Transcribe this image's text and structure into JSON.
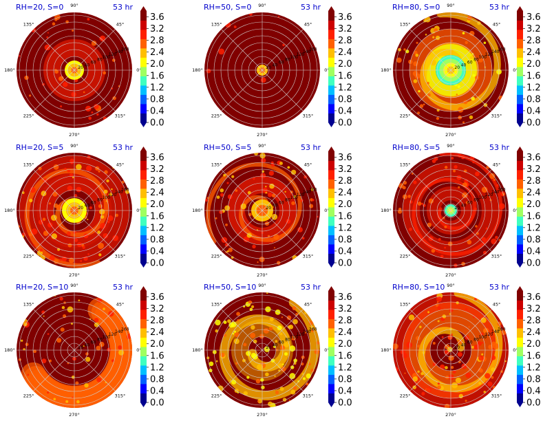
{
  "figure": {
    "colors": {
      "background": "#ffffff",
      "title": "#0000cc",
      "grid": "#cfcfcf",
      "outer": "#800000"
    },
    "colormap": [
      "#00008f",
      "#0000ff",
      "#0060ff",
      "#00bfff",
      "#40ffbf",
      "#9fff60",
      "#ffff00",
      "#ffbf00",
      "#ff6000",
      "#ff2000",
      "#cc0000",
      "#800000"
    ]
  },
  "chart_data": [
    {
      "type": "heatmap",
      "subplot": "polar",
      "title": "RH=20, S=0",
      "time_label": "53 hr",
      "angle_ticks": [
        "90°",
        "45°",
        "0°",
        "315°",
        "270°",
        "225°",
        "180°",
        "135°"
      ],
      "radial_ticks": [
        "20",
        "40",
        "60",
        "80",
        "100",
        "120",
        "140",
        "160"
      ],
      "colorbar_ticks": [
        "3.6",
        "3.2",
        "2.8",
        "2.4",
        "2.0",
        "1.6",
        "1.2",
        "0.8",
        "0.4",
        "0.0"
      ],
      "color_range": [
        0.0,
        3.8
      ],
      "field_description": "mostly saturated dark red with a small orange core"
    },
    {
      "type": "heatmap",
      "subplot": "polar",
      "title": "RH=50, S=0",
      "time_label": "53 hr",
      "angle_ticks": [
        "90°",
        "45°",
        "0°",
        "315°",
        "270°",
        "225°",
        "180°",
        "135°"
      ],
      "radial_ticks": [
        "20",
        "40",
        "60",
        "80",
        "100",
        "120",
        "140",
        "160"
      ],
      "colorbar_ticks": [
        "3.6",
        "3.2",
        "2.8",
        "2.4",
        "2.0",
        "1.6",
        "1.2",
        "0.8",
        "0.4",
        "0.0"
      ],
      "color_range": [
        0.0,
        3.8
      ],
      "field_description": "uniform dark red with tiny central orange spot"
    },
    {
      "type": "heatmap",
      "subplot": "polar",
      "title": "RH=80, S=0",
      "time_label": "53 hr",
      "angle_ticks": [
        "90°",
        "45°",
        "0°",
        "315°",
        "270°",
        "225°",
        "180°",
        "135°"
      ],
      "radial_ticks": [
        "20",
        "40",
        "60",
        "80",
        "100",
        "120",
        "140",
        "160"
      ],
      "colorbar_ticks": [
        "3.6",
        "3.2",
        "2.8",
        "2.4",
        "2.0",
        "1.6",
        "1.2",
        "0.8",
        "0.4",
        "0.0"
      ],
      "color_range": [
        0.0,
        3.8
      ],
      "field_description": "green-cyan eye surrounded by yellow and orange spiral"
    },
    {
      "type": "heatmap",
      "subplot": "polar",
      "title": "RH=20, S=5",
      "time_label": "53 hr",
      "angle_ticks": [
        "90°",
        "45°",
        "0°",
        "315°",
        "270°",
        "225°",
        "180°",
        "135°"
      ],
      "radial_ticks": [
        "20",
        "40",
        "60",
        "80",
        "100",
        "120",
        "140",
        "160"
      ],
      "colorbar_ticks": [
        "3.6",
        "3.2",
        "2.8",
        "2.4",
        "2.0",
        "1.6",
        "1.2",
        "0.8",
        "0.4",
        "0.0"
      ],
      "color_range": [
        0.0,
        3.8
      ],
      "field_description": "orange-yellow core with spiral bands"
    },
    {
      "type": "heatmap",
      "subplot": "polar",
      "title": "RH=50, S=5",
      "time_label": "53 hr",
      "angle_ticks": [
        "90°",
        "45°",
        "0°",
        "315°",
        "270°",
        "225°",
        "180°",
        "135°"
      ],
      "radial_ticks": [
        "20",
        "40",
        "60",
        "80",
        "100",
        "120",
        "140",
        "160"
      ],
      "colorbar_ticks": [
        "3.6",
        "3.2",
        "2.8",
        "2.4",
        "2.0",
        "1.6",
        "1.2",
        "0.8",
        "0.4",
        "0.0"
      ],
      "color_range": [
        0.0,
        3.8
      ],
      "field_description": "orange core with scattered orange bands"
    },
    {
      "type": "heatmap",
      "subplot": "polar",
      "title": "RH=80, S=5",
      "time_label": "53 hr",
      "angle_ticks": [
        "90°",
        "45°",
        "0°",
        "315°",
        "270°",
        "225°",
        "180°",
        "135°"
      ],
      "radial_ticks": [
        "20",
        "40",
        "60",
        "80",
        "100",
        "120",
        "140",
        "160"
      ],
      "colorbar_ticks": [
        "3.6",
        "3.2",
        "2.8",
        "2.4",
        "2.0",
        "1.6",
        "1.2",
        "0.8",
        "0.4",
        "0.0"
      ],
      "color_range": [
        0.0,
        3.8
      ],
      "field_description": "small green eye with red rings"
    },
    {
      "type": "heatmap",
      "subplot": "polar",
      "title": "RH=20, S=10",
      "time_label": "53 hr",
      "angle_ticks": [
        "90°",
        "45°",
        "0°",
        "315°",
        "270°",
        "225°",
        "180°",
        "135°"
      ],
      "radial_ticks": [
        "20",
        "40",
        "60",
        "80",
        "100",
        "120",
        "140",
        "160"
      ],
      "colorbar_ticks": [
        "3.6",
        "3.2",
        "2.8",
        "2.4",
        "2.0",
        "1.6",
        "1.2",
        "0.8",
        "0.4",
        "0.0"
      ],
      "color_range": [
        0.0,
        3.8
      ],
      "field_description": "dark red interior, orange crescent along lower and right edges"
    },
    {
      "type": "heatmap",
      "subplot": "polar",
      "title": "RH=50, S=10",
      "time_label": "53 hr",
      "angle_ticks": [
        "90°",
        "45°",
        "0°",
        "315°",
        "270°",
        "225°",
        "180°",
        "135°"
      ],
      "radial_ticks": [
        "20",
        "40",
        "60",
        "80",
        "100",
        "120",
        "140",
        "160"
      ],
      "colorbar_ticks": [
        "3.6",
        "3.2",
        "2.8",
        "2.4",
        "2.0",
        "1.6",
        "1.2",
        "0.8",
        "0.4",
        "0.0"
      ],
      "color_range": [
        0.0,
        3.8
      ],
      "field_description": "large yellow-orange spiral bands"
    },
    {
      "type": "heatmap",
      "subplot": "polar",
      "title": "RH=80, S=10",
      "time_label": "53 hr",
      "angle_ticks": [
        "90°",
        "45°",
        "0°",
        "315°",
        "270°",
        "225°",
        "180°",
        "135°"
      ],
      "radial_ticks": [
        "20",
        "40",
        "60",
        "80",
        "100",
        "120",
        "140",
        "160"
      ],
      "colorbar_ticks": [
        "3.6",
        "3.2",
        "2.8",
        "2.4",
        "2.0",
        "1.6",
        "1.2",
        "0.8",
        "0.4",
        "0.0"
      ],
      "color_range": [
        0.0,
        3.8
      ],
      "field_description": "broad orange ring with dark red center"
    }
  ]
}
